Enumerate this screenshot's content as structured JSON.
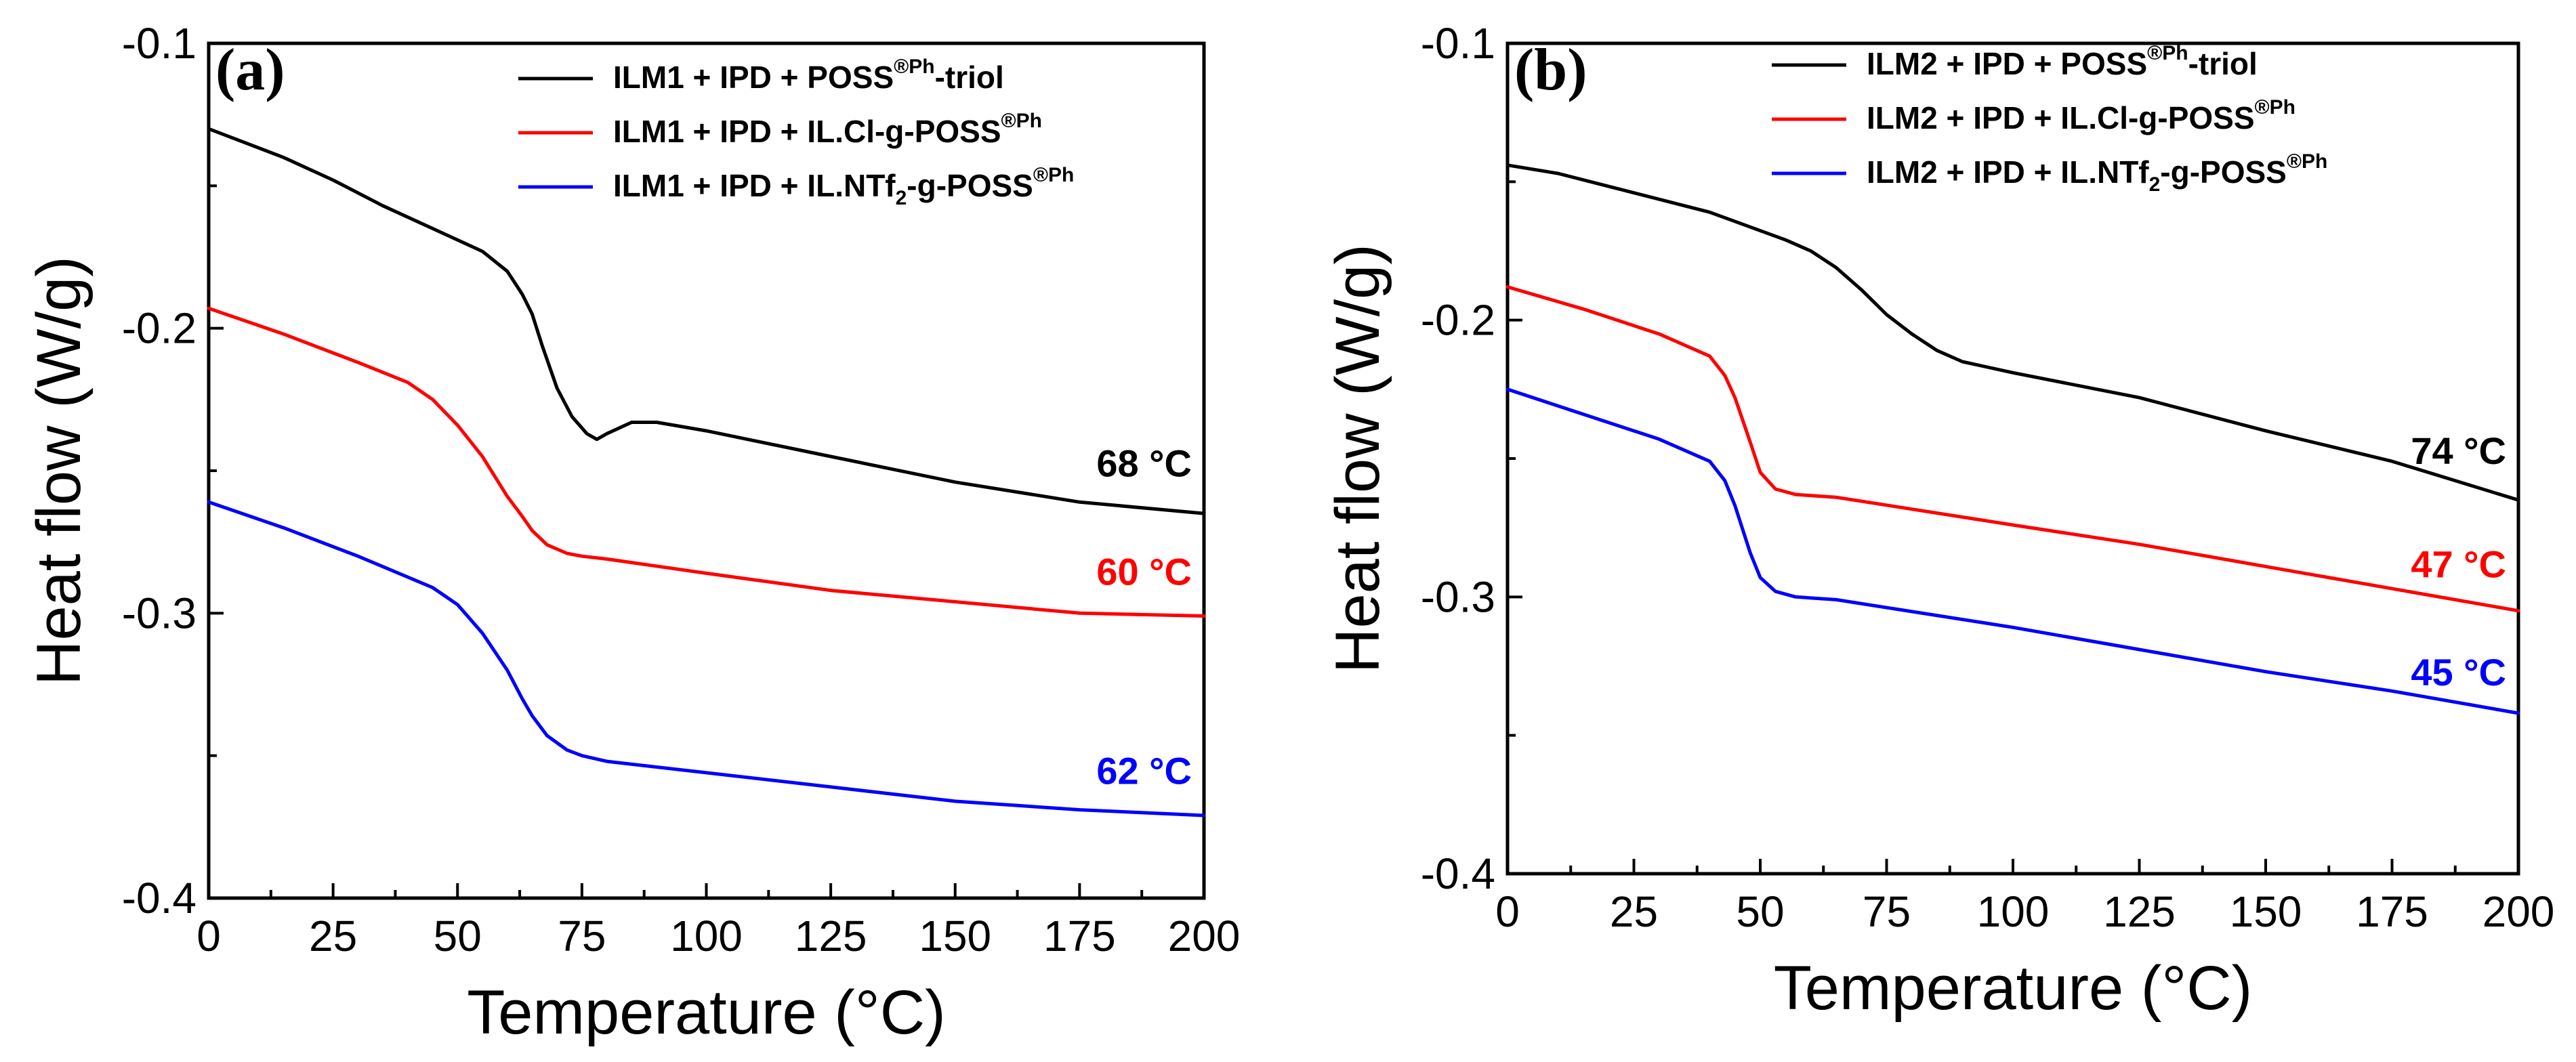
{
  "chart_data": [
    {
      "panel": "(a)",
      "type": "line",
      "title": "",
      "xlabel": "Temperature (°C)",
      "ylabel": "Heat flow (W/g)",
      "xlim": [
        0,
        200
      ],
      "ylim": [
        -0.4,
        -0.1
      ],
      "xticks": [
        "0",
        "25",
        "50",
        "75",
        "100",
        "125",
        "150",
        "175",
        "200"
      ],
      "yticks": [
        "-0.1",
        "-0.2",
        "-0.3",
        "-0.4"
      ],
      "xtick_values": [
        0,
        25,
        50,
        75,
        100,
        125,
        150,
        175,
        200
      ],
      "ytick_values": [
        -0.1,
        -0.2,
        -0.3,
        -0.4
      ],
      "legend_position": "top-right",
      "grid": false,
      "series": [
        {
          "name": "ILM1 + IPD + POSS®Ph-triol",
          "legend_main": "ILM1 + IPD + POSS",
          "legend_sup": "®Ph",
          "legend_tail": "-triol",
          "legend_sub": "",
          "legend_tail2": "",
          "color": "#000000",
          "x": [
            0,
            15,
            25,
            35,
            45,
            55,
            60,
            63,
            65,
            67,
            70,
            73,
            76,
            78,
            80,
            85,
            90,
            100,
            125,
            150,
            175,
            200
          ],
          "values": [
            -0.13,
            -0.14,
            -0.148,
            -0.157,
            -0.165,
            -0.173,
            -0.18,
            -0.188,
            -0.195,
            -0.206,
            -0.221,
            -0.231,
            -0.237,
            -0.239,
            -0.237,
            -0.233,
            -0.233,
            -0.236,
            -0.245,
            -0.254,
            -0.261,
            -0.265
          ],
          "annotation": "68 °C",
          "annotation_at": [
            200,
            -0.252
          ]
        },
        {
          "name": "ILM1 + IPD + IL.Cl-g-POSS®Ph",
          "legend_main": "ILM1 + IPD + IL.Cl-g-POSS",
          "legend_sup": "®Ph",
          "legend_tail": "",
          "legend_sub": "",
          "legend_tail2": "",
          "color": "#ff0000",
          "x": [
            0,
            15,
            30,
            40,
            45,
            50,
            55,
            60,
            63,
            65,
            68,
            72,
            75,
            80,
            100,
            125,
            150,
            175,
            200
          ],
          "values": [
            -0.193,
            -0.202,
            -0.212,
            -0.219,
            -0.225,
            -0.234,
            -0.245,
            -0.259,
            -0.266,
            -0.271,
            -0.276,
            -0.279,
            -0.28,
            -0.281,
            -0.286,
            -0.292,
            -0.296,
            -0.3,
            -0.301
          ],
          "annotation": "60 °C",
          "annotation_at": [
            200,
            -0.29
          ]
        },
        {
          "name": "ILM1 + IPD + IL.NTf2-g-POSS®Ph",
          "legend_main": "ILM1 + IPD + IL.NTf",
          "legend_sup": "®Ph",
          "legend_tail": "-g-POSS",
          "legend_sub": "2",
          "legend_tail2": "",
          "color": "#0000ff",
          "x": [
            0,
            15,
            30,
            45,
            50,
            55,
            60,
            63,
            65,
            68,
            72,
            75,
            80,
            100,
            125,
            150,
            175,
            200
          ],
          "values": [
            -0.261,
            -0.27,
            -0.28,
            -0.291,
            -0.297,
            -0.307,
            -0.32,
            -0.33,
            -0.336,
            -0.343,
            -0.348,
            -0.35,
            -0.352,
            -0.356,
            -0.361,
            -0.366,
            -0.369,
            -0.371
          ],
          "annotation": "62 °C",
          "annotation_at": [
            200,
            -0.36
          ]
        }
      ]
    },
    {
      "panel": "(b)",
      "type": "line",
      "title": "",
      "xlabel": "Temperature (°C)",
      "ylabel": "Heat flow (W/g)",
      "xlim": [
        0,
        200
      ],
      "ylim": [
        -0.4,
        -0.1
      ],
      "xticks": [
        "0",
        "25",
        "50",
        "75",
        "100",
        "125",
        "150",
        "175",
        "200"
      ],
      "yticks": [
        "-0.1",
        "-0.2",
        "-0.3",
        "-0.4"
      ],
      "xtick_values": [
        0,
        25,
        50,
        75,
        100,
        125,
        150,
        175,
        200
      ],
      "ytick_values": [
        -0.1,
        -0.2,
        -0.3,
        -0.4
      ],
      "legend_position": "top-right",
      "grid": false,
      "series": [
        {
          "name": "ILM2 + IPD + POSS®Ph-triol",
          "legend_main": "ILM2 + IPD + POSS",
          "legend_sup": "®Ph",
          "legend_tail": "-triol",
          "legend_sub": "",
          "legend_tail2": "",
          "color": "#000000",
          "x": [
            0,
            10,
            25,
            40,
            55,
            60,
            65,
            70,
            75,
            80,
            85,
            90,
            100,
            125,
            150,
            175,
            200
          ],
          "values": [
            -0.144,
            -0.147,
            -0.154,
            -0.161,
            -0.171,
            -0.175,
            -0.181,
            -0.189,
            -0.198,
            -0.205,
            -0.211,
            -0.215,
            -0.219,
            -0.228,
            -0.24,
            -0.251,
            -0.265
          ],
          "annotation": "74 °C",
          "annotation_at": [
            200,
            -0.252
          ]
        },
        {
          "name": "ILM2 + IPD + IL.Cl-g-POSS®Ph",
          "legend_main": "ILM2 + IPD + IL.Cl-g-POSS",
          "legend_sup": "®Ph",
          "legend_tail": "",
          "legend_sub": "",
          "legend_tail2": "",
          "color": "#ff0000",
          "x": [
            0,
            15,
            30,
            40,
            43,
            45,
            48,
            50,
            53,
            57,
            65,
            100,
            125,
            150,
            175,
            200
          ],
          "values": [
            -0.188,
            -0.196,
            -0.205,
            -0.213,
            -0.22,
            -0.228,
            -0.244,
            -0.255,
            -0.261,
            -0.263,
            -0.264,
            -0.274,
            -0.281,
            -0.289,
            -0.297,
            -0.305
          ],
          "annotation": "47 °C",
          "annotation_at": [
            200,
            -0.293
          ]
        },
        {
          "name": "ILM2 + IPD + IL.NTf2-g-POSS®Ph",
          "legend_main": "ILM2 + IPD + IL.NTf",
          "legend_sup": "®Ph",
          "legend_tail": "-g-POSS",
          "legend_sub": "2",
          "legend_tail2": "",
          "color": "#0000ff",
          "x": [
            0,
            15,
            30,
            40,
            43,
            45,
            48,
            50,
            53,
            57,
            65,
            100,
            125,
            150,
            175,
            200
          ],
          "values": [
            -0.225,
            -0.234,
            -0.243,
            -0.251,
            -0.258,
            -0.267,
            -0.284,
            -0.293,
            -0.298,
            -0.3,
            -0.301,
            -0.311,
            -0.319,
            -0.327,
            -0.334,
            -0.342
          ],
          "annotation": "45 °C",
          "annotation_at": [
            200,
            -0.332
          ]
        }
      ]
    }
  ]
}
